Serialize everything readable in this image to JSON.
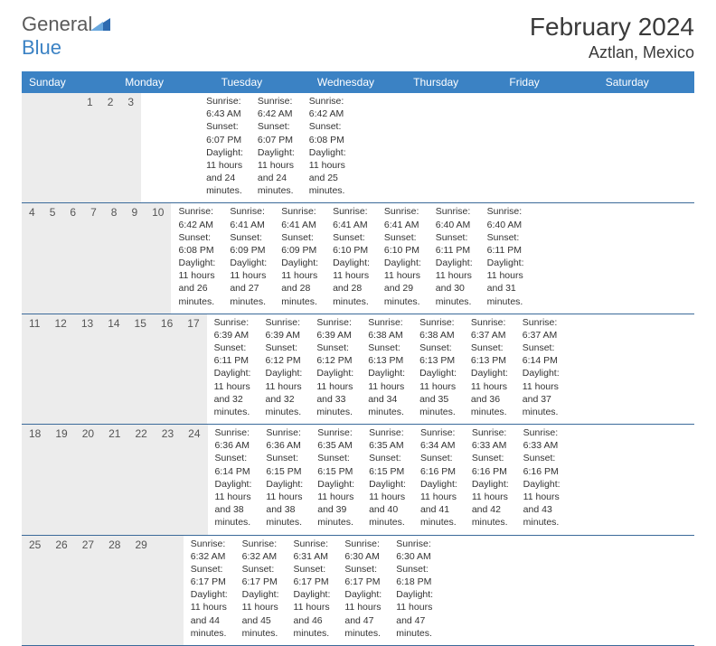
{
  "logo": {
    "general": "General",
    "blue": "Blue"
  },
  "title": "February 2024",
  "location": "Aztlan, Mexico",
  "colors": {
    "header_bg": "#3b82c4",
    "header_text": "#ffffff",
    "daynum_bg": "#ececec",
    "border": "#3b6a9a",
    "text": "#333333",
    "title_text": "#3a3a3a"
  },
  "day_names": [
    "Sunday",
    "Monday",
    "Tuesday",
    "Wednesday",
    "Thursday",
    "Friday",
    "Saturday"
  ],
  "weeks": [
    [
      {
        "n": "",
        "sr": "",
        "ss": "",
        "dl": ""
      },
      {
        "n": "",
        "sr": "",
        "ss": "",
        "dl": ""
      },
      {
        "n": "",
        "sr": "",
        "ss": "",
        "dl": ""
      },
      {
        "n": "",
        "sr": "",
        "ss": "",
        "dl": ""
      },
      {
        "n": "1",
        "sr": "Sunrise: 6:43 AM",
        "ss": "Sunset: 6:07 PM",
        "dl": "Daylight: 11 hours and 24 minutes."
      },
      {
        "n": "2",
        "sr": "Sunrise: 6:42 AM",
        "ss": "Sunset: 6:07 PM",
        "dl": "Daylight: 11 hours and 24 minutes."
      },
      {
        "n": "3",
        "sr": "Sunrise: 6:42 AM",
        "ss": "Sunset: 6:08 PM",
        "dl": "Daylight: 11 hours and 25 minutes."
      }
    ],
    [
      {
        "n": "4",
        "sr": "Sunrise: 6:42 AM",
        "ss": "Sunset: 6:08 PM",
        "dl": "Daylight: 11 hours and 26 minutes."
      },
      {
        "n": "5",
        "sr": "Sunrise: 6:41 AM",
        "ss": "Sunset: 6:09 PM",
        "dl": "Daylight: 11 hours and 27 minutes."
      },
      {
        "n": "6",
        "sr": "Sunrise: 6:41 AM",
        "ss": "Sunset: 6:09 PM",
        "dl": "Daylight: 11 hours and 28 minutes."
      },
      {
        "n": "7",
        "sr": "Sunrise: 6:41 AM",
        "ss": "Sunset: 6:10 PM",
        "dl": "Daylight: 11 hours and 28 minutes."
      },
      {
        "n": "8",
        "sr": "Sunrise: 6:41 AM",
        "ss": "Sunset: 6:10 PM",
        "dl": "Daylight: 11 hours and 29 minutes."
      },
      {
        "n": "9",
        "sr": "Sunrise: 6:40 AM",
        "ss": "Sunset: 6:11 PM",
        "dl": "Daylight: 11 hours and 30 minutes."
      },
      {
        "n": "10",
        "sr": "Sunrise: 6:40 AM",
        "ss": "Sunset: 6:11 PM",
        "dl": "Daylight: 11 hours and 31 minutes."
      }
    ],
    [
      {
        "n": "11",
        "sr": "Sunrise: 6:39 AM",
        "ss": "Sunset: 6:11 PM",
        "dl": "Daylight: 11 hours and 32 minutes."
      },
      {
        "n": "12",
        "sr": "Sunrise: 6:39 AM",
        "ss": "Sunset: 6:12 PM",
        "dl": "Daylight: 11 hours and 32 minutes."
      },
      {
        "n": "13",
        "sr": "Sunrise: 6:39 AM",
        "ss": "Sunset: 6:12 PM",
        "dl": "Daylight: 11 hours and 33 minutes."
      },
      {
        "n": "14",
        "sr": "Sunrise: 6:38 AM",
        "ss": "Sunset: 6:13 PM",
        "dl": "Daylight: 11 hours and 34 minutes."
      },
      {
        "n": "15",
        "sr": "Sunrise: 6:38 AM",
        "ss": "Sunset: 6:13 PM",
        "dl": "Daylight: 11 hours and 35 minutes."
      },
      {
        "n": "16",
        "sr": "Sunrise: 6:37 AM",
        "ss": "Sunset: 6:13 PM",
        "dl": "Daylight: 11 hours and 36 minutes."
      },
      {
        "n": "17",
        "sr": "Sunrise: 6:37 AM",
        "ss": "Sunset: 6:14 PM",
        "dl": "Daylight: 11 hours and 37 minutes."
      }
    ],
    [
      {
        "n": "18",
        "sr": "Sunrise: 6:36 AM",
        "ss": "Sunset: 6:14 PM",
        "dl": "Daylight: 11 hours and 38 minutes."
      },
      {
        "n": "19",
        "sr": "Sunrise: 6:36 AM",
        "ss": "Sunset: 6:15 PM",
        "dl": "Daylight: 11 hours and 38 minutes."
      },
      {
        "n": "20",
        "sr": "Sunrise: 6:35 AM",
        "ss": "Sunset: 6:15 PM",
        "dl": "Daylight: 11 hours and 39 minutes."
      },
      {
        "n": "21",
        "sr": "Sunrise: 6:35 AM",
        "ss": "Sunset: 6:15 PM",
        "dl": "Daylight: 11 hours and 40 minutes."
      },
      {
        "n": "22",
        "sr": "Sunrise: 6:34 AM",
        "ss": "Sunset: 6:16 PM",
        "dl": "Daylight: 11 hours and 41 minutes."
      },
      {
        "n": "23",
        "sr": "Sunrise: 6:33 AM",
        "ss": "Sunset: 6:16 PM",
        "dl": "Daylight: 11 hours and 42 minutes."
      },
      {
        "n": "24",
        "sr": "Sunrise: 6:33 AM",
        "ss": "Sunset: 6:16 PM",
        "dl": "Daylight: 11 hours and 43 minutes."
      }
    ],
    [
      {
        "n": "25",
        "sr": "Sunrise: 6:32 AM",
        "ss": "Sunset: 6:17 PM",
        "dl": "Daylight: 11 hours and 44 minutes."
      },
      {
        "n": "26",
        "sr": "Sunrise: 6:32 AM",
        "ss": "Sunset: 6:17 PM",
        "dl": "Daylight: 11 hours and 45 minutes."
      },
      {
        "n": "27",
        "sr": "Sunrise: 6:31 AM",
        "ss": "Sunset: 6:17 PM",
        "dl": "Daylight: 11 hours and 46 minutes."
      },
      {
        "n": "28",
        "sr": "Sunrise: 6:30 AM",
        "ss": "Sunset: 6:17 PM",
        "dl": "Daylight: 11 hours and 47 minutes."
      },
      {
        "n": "29",
        "sr": "Sunrise: 6:30 AM",
        "ss": "Sunset: 6:18 PM",
        "dl": "Daylight: 11 hours and 47 minutes."
      },
      {
        "n": "",
        "sr": "",
        "ss": "",
        "dl": ""
      },
      {
        "n": "",
        "sr": "",
        "ss": "",
        "dl": ""
      }
    ]
  ]
}
